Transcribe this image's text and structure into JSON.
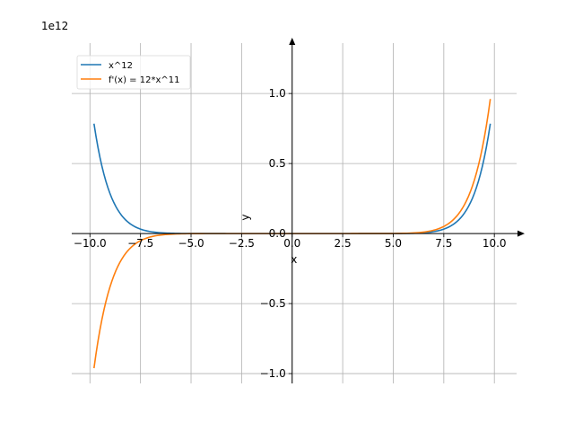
{
  "chart_data": {
    "type": "line",
    "offset_text": "1e12",
    "xlabel": "x",
    "ylabel": "y",
    "xlim": [
      -10.9,
      11.1
    ],
    "ylim": [
      -1.07,
      1.36
    ],
    "x_ticks": [
      -10.0,
      -7.5,
      -5.0,
      -2.5,
      0.0,
      2.5,
      5.0,
      7.5,
      10.0
    ],
    "x_tick_labels": [
      "−10.0",
      "−7.5",
      "−5.0",
      "−2.5",
      "0.0",
      "2.5",
      "5.0",
      "7.5",
      "10.0"
    ],
    "y_ticks": [
      -1.0,
      -0.5,
      0.0,
      0.5,
      1.0
    ],
    "y_tick_labels": [
      "−1.0",
      "−0.5",
      "0.0",
      "0.5",
      "1.0"
    ],
    "grid": true,
    "legend_position": "top-left",
    "x_range": [
      -9.8,
      9.8
    ],
    "series": [
      {
        "name": "x^12",
        "color": "#1f77b4",
        "expression": "x^12"
      },
      {
        "name": "f'(x) = 12*x^11",
        "color": "#ff7f0e",
        "expression": "12*x^11"
      }
    ]
  }
}
